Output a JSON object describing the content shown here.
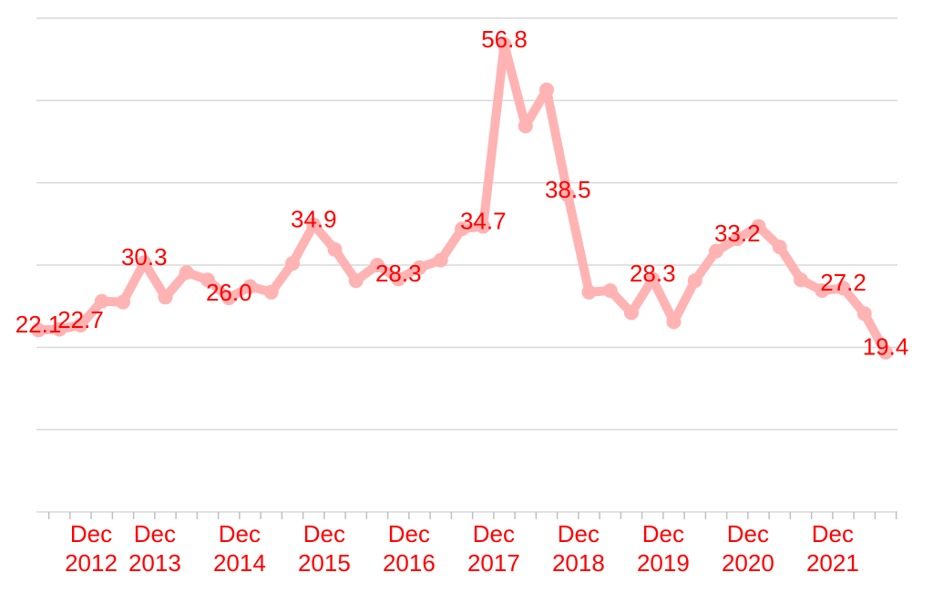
{
  "chart_data": {
    "type": "line",
    "categories": [
      null,
      "Dec 2012",
      null,
      null,
      null,
      "Dec 2013",
      null,
      null,
      null,
      "Dec 2014",
      null,
      null,
      null,
      "Dec 2015",
      null,
      null,
      null,
      "Dec 2016",
      null,
      null,
      null,
      "Dec 2017",
      null,
      null,
      null,
      "Dec 2018",
      null,
      null,
      null,
      "Dec 2019",
      null,
      null,
      null,
      "Dec 2020",
      null,
      null,
      null,
      "Dec 2021",
      null,
      null,
      null
    ],
    "series": [
      {
        "color": "#ffb3b3",
        "values": [
          22.1,
          22.2,
          22.7,
          25.6,
          25.5,
          30.3,
          26.1,
          29.1,
          28.2,
          26.0,
          27.4,
          26.7,
          30.2,
          34.9,
          31.9,
          28.1,
          30.0,
          28.3,
          29.7,
          30.6,
          34.4,
          34.7,
          56.8,
          46.9,
          51.3,
          38.5,
          26.7,
          26.9,
          24.2,
          28.3,
          23.1,
          28.1,
          31.7,
          33.2,
          34.7,
          32.2,
          28.2,
          26.9,
          27.2,
          24.1,
          19.4
        ],
        "value_labels": [
          "22.1",
          null,
          "22.7",
          null,
          null,
          "30.3",
          null,
          null,
          null,
          "26.0",
          null,
          null,
          null,
          "34.9",
          null,
          null,
          null,
          "28.3",
          null,
          null,
          null,
          "34.7",
          "56.8",
          null,
          null,
          "38.5",
          null,
          null,
          null,
          "28.3",
          null,
          null,
          null,
          "33.2",
          null,
          null,
          null,
          null,
          "27.2",
          null,
          "19.4"
        ]
      }
    ],
    "label_color": "#ff0000",
    "ylim": [
      0,
      60
    ],
    "yticks": [
      0,
      10,
      20,
      30,
      40,
      50,
      60
    ],
    "grid": true
  }
}
